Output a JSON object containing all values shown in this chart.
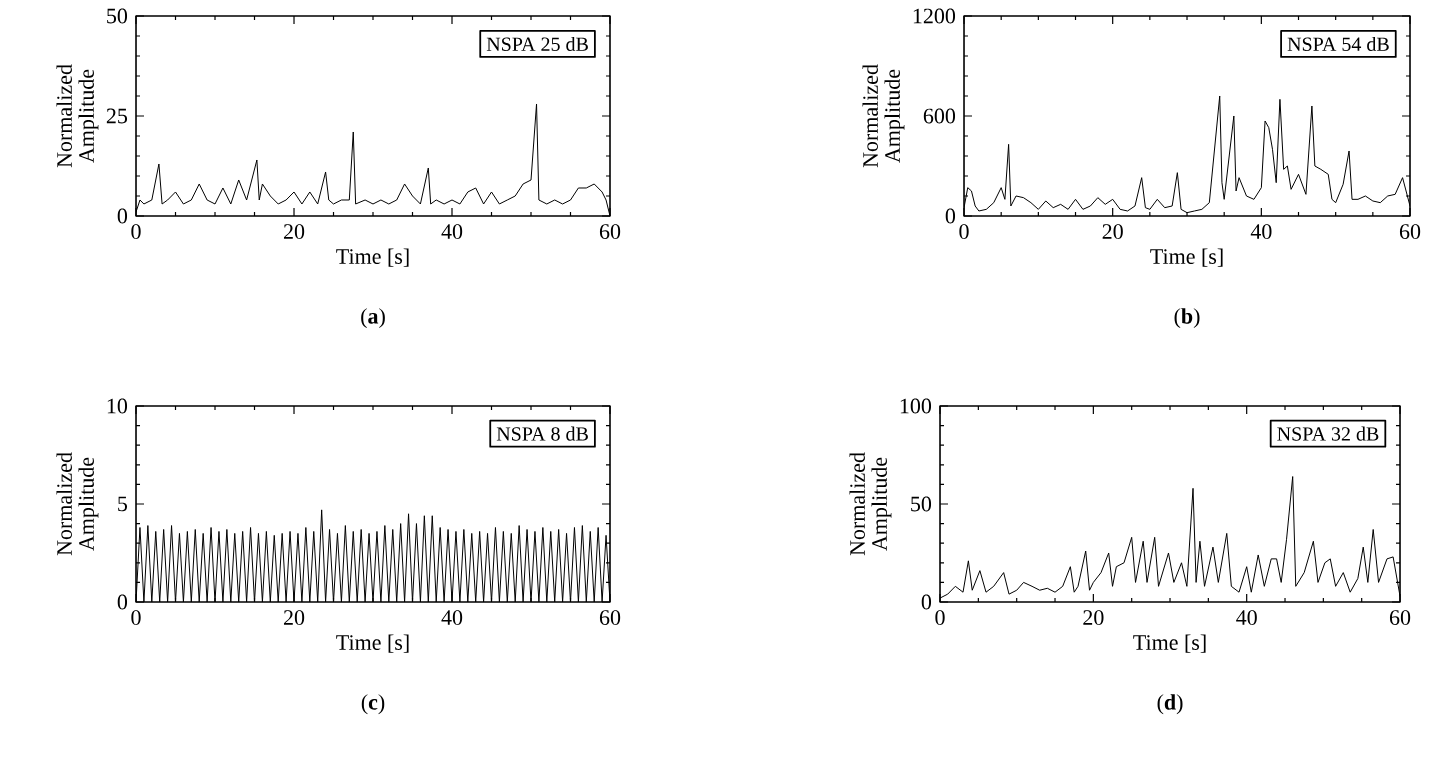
{
  "chart_data": [
    {
      "type": "line",
      "title": "(**a**)",
      "xlabel": "Time [s]",
      "ylabel": "Normalized Amplitude",
      "annotations": [
        "NSPA 25 dB"
      ],
      "xlim": [
        0,
        60
      ],
      "ylim": [
        0,
        50
      ],
      "xticks": [
        0,
        20,
        40,
        60
      ],
      "yticks": [
        0,
        25,
        50
      ],
      "x": [
        0,
        0.5,
        1,
        2,
        2.9,
        3.3,
        4,
        5,
        6,
        7,
        8,
        9,
        10,
        11,
        12,
        13,
        14,
        15.3,
        15.6,
        16,
        17,
        18,
        19,
        20,
        21,
        22,
        23,
        24,
        24.4,
        25,
        26,
        27,
        27.5,
        27.8,
        29,
        30,
        31,
        32,
        33,
        34,
        35,
        36,
        37,
        37.3,
        38,
        39,
        40,
        41,
        42,
        43,
        44,
        45,
        46,
        47,
        48,
        49,
        50,
        50.7,
        51,
        52,
        53,
        54,
        55,
        56,
        57,
        58,
        59,
        59.5,
        60
      ],
      "series": [
        {
          "color": "#000000",
          "values": [
            1,
            4,
            3,
            4,
            13,
            3,
            4,
            6,
            3,
            4,
            8,
            4,
            3,
            7,
            3,
            9,
            4,
            14,
            4,
            8,
            5,
            3,
            4,
            6,
            3,
            6,
            3,
            11,
            4,
            3,
            4,
            4,
            21,
            3,
            4,
            3,
            4,
            3,
            4,
            8,
            5,
            3,
            12,
            3,
            4,
            3,
            4,
            3,
            6,
            7,
            3,
            6,
            3,
            4,
            5,
            8,
            9,
            28,
            4,
            3,
            4,
            3,
            4,
            7,
            7,
            8,
            6,
            4,
            0
          ]
        }
      ]
    },
    {
      "type": "line",
      "title": "(**b**)",
      "xlabel": "Time [s]",
      "ylabel": "Normalized Amplitude",
      "annotations": [
        "NSPA 54 dB"
      ],
      "xlim": [
        0,
        60
      ],
      "ylim": [
        0,
        1200
      ],
      "xticks": [
        0,
        20,
        40,
        60
      ],
      "yticks": [
        0,
        600,
        1200
      ],
      "x": [
        0,
        0.5,
        1,
        1.5,
        2,
        3,
        4,
        5,
        5.5,
        6,
        6.3,
        7,
        8,
        9,
        10,
        11,
        12,
        13,
        14,
        15,
        16,
        17,
        18,
        19,
        20,
        21,
        22,
        23,
        23.9,
        24.4,
        25,
        26,
        27,
        28,
        28.7,
        29.2,
        30,
        31,
        32,
        33,
        34.4,
        34.7,
        35,
        36.3,
        36.6,
        37,
        38,
        39,
        40,
        40.5,
        41,
        41.5,
        42,
        42.5,
        43,
        43.5,
        44,
        45,
        46,
        46.8,
        47.2,
        48,
        49,
        49.5,
        50,
        51,
        51.8,
        52.2,
        53,
        54,
        55,
        56,
        57,
        58,
        59,
        60
      ],
      "series": [
        {
          "color": "#000000",
          "values": [
            50,
            170,
            150,
            60,
            30,
            40,
            80,
            170,
            100,
            430,
            60,
            120,
            110,
            80,
            40,
            90,
            50,
            70,
            40,
            100,
            40,
            60,
            110,
            70,
            100,
            40,
            30,
            60,
            230,
            50,
            40,
            100,
            50,
            60,
            260,
            40,
            20,
            30,
            40,
            80,
            720,
            200,
            100,
            600,
            150,
            230,
            120,
            100,
            170,
            570,
            530,
            400,
            200,
            700,
            280,
            300,
            160,
            250,
            130,
            660,
            300,
            280,
            250,
            100,
            80,
            190,
            390,
            100,
            100,
            120,
            90,
            80,
            120,
            130,
            230,
            60
          ]
        }
      ]
    },
    {
      "type": "line",
      "title": "(**c**)",
      "xlabel": "Time [s]",
      "ylabel": "Normalized Amplitude",
      "annotations": [
        "NSPA 8 dB"
      ],
      "xlim": [
        0,
        60
      ],
      "ylim": [
        0,
        10
      ],
      "xticks": [
        0,
        20,
        40,
        60
      ],
      "yticks": [
        0,
        5,
        10
      ],
      "x": [
        0,
        0.5,
        1,
        1.5,
        2,
        2.5,
        3,
        3.5,
        4,
        4.5,
        5,
        5.5,
        6,
        6.5,
        7,
        7.5,
        8,
        8.5,
        9,
        9.5,
        10,
        10.5,
        11,
        11.5,
        12,
        12.5,
        13,
        13.5,
        14,
        14.5,
        15,
        15.5,
        16,
        16.5,
        17,
        17.5,
        18,
        18.5,
        19,
        19.5,
        20,
        20.5,
        21,
        21.5,
        22,
        22.5,
        23,
        23.5,
        24,
        24.5,
        25,
        25.5,
        26,
        26.5,
        27,
        27.5,
        28,
        28.5,
        29,
        29.5,
        30,
        30.5,
        31,
        31.5,
        32,
        32.5,
        33,
        33.5,
        34,
        34.5,
        35,
        35.5,
        36,
        36.5,
        37,
        37.5,
        38,
        38.5,
        39,
        39.5,
        40,
        40.5,
        41,
        41.5,
        42,
        42.5,
        43,
        43.5,
        44,
        44.5,
        45,
        45.5,
        46,
        46.5,
        47,
        47.5,
        48,
        48.5,
        49,
        49.5,
        50,
        50.5,
        51,
        51.5,
        52,
        52.5,
        53,
        53.5,
        54,
        54.5,
        55,
        55.5,
        56,
        56.5,
        57,
        57.5,
        58,
        58.5,
        59,
        59.5,
        60
      ],
      "series": [
        {
          "color": "#000000",
          "values": [
            0,
            3.8,
            0,
            3.9,
            0,
            3.6,
            0,
            3.7,
            0,
            3.9,
            0,
            3.5,
            0,
            3.6,
            0,
            3.7,
            0,
            3.5,
            0,
            3.8,
            0,
            3.6,
            0,
            3.7,
            0,
            3.5,
            0,
            3.6,
            0,
            3.8,
            0,
            3.5,
            0,
            3.6,
            0,
            3.4,
            0,
            3.5,
            0,
            3.6,
            0,
            3.5,
            0,
            3.8,
            0,
            3.6,
            0,
            4.7,
            0,
            3.7,
            0,
            3.5,
            0,
            3.9,
            0,
            3.6,
            0,
            3.7,
            0,
            3.5,
            0,
            3.6,
            0,
            3.9,
            0,
            3.7,
            0,
            4.0,
            0,
            4.5,
            0,
            4.0,
            0,
            4.4,
            0,
            4.4,
            0,
            3.8,
            0,
            3.7,
            0,
            3.6,
            0,
            3.7,
            0,
            3.5,
            0,
            3.6,
            0,
            3.5,
            0,
            3.8,
            0,
            3.6,
            0,
            3.5,
            0,
            3.9,
            0,
            3.7,
            0,
            3.6,
            0,
            3.8,
            0,
            3.6,
            0,
            3.7,
            0,
            3.5,
            0,
            3.8,
            0,
            3.9,
            0,
            3.6,
            0,
            3.8,
            0,
            3.4,
            0
          ]
        }
      ]
    },
    {
      "type": "line",
      "title": "(**d**)",
      "xlabel": "Time [s]",
      "ylabel": "Normalized Amplitude",
      "annotations": [
        "NSPA 32 dB"
      ],
      "xlim": [
        0,
        60
      ],
      "ylim": [
        0,
        100
      ],
      "xticks": [
        0,
        20,
        40,
        60
      ],
      "yticks": [
        0,
        50,
        100
      ],
      "x": [
        0,
        1,
        2,
        3,
        3.7,
        4.2,
        5.2,
        6,
        7,
        8.3,
        9,
        10,
        10.9,
        12,
        13,
        14,
        15,
        16,
        17,
        17.5,
        18,
        19,
        19.5,
        20,
        21,
        22,
        22.5,
        23,
        24,
        25,
        25.5,
        26.5,
        27,
        28,
        28.5,
        29.8,
        30.5,
        31.5,
        32.2,
        33,
        33.4,
        33.9,
        34.5,
        35.6,
        36.3,
        37.4,
        38,
        39,
        40,
        40.6,
        41.5,
        42.3,
        43.2,
        43.9,
        44.5,
        45.2,
        46,
        46.4,
        47.5,
        48.7,
        49.3,
        50.2,
        50.9,
        51.6,
        52.6,
        53.5,
        54.5,
        55.2,
        55.8,
        56.5,
        57.2,
        58.3,
        59.1,
        60
      ],
      "series": [
        {
          "color": "#000000",
          "values": [
            2,
            4,
            8,
            5,
            21,
            6,
            16,
            5,
            8,
            15,
            4,
            6,
            10,
            8,
            6,
            7,
            5,
            8,
            18,
            5,
            8,
            26,
            6,
            10,
            15,
            25,
            8,
            18,
            20,
            33,
            10,
            31,
            10,
            33,
            8,
            25,
            10,
            20,
            8,
            58,
            10,
            31,
            8,
            28,
            10,
            35,
            8,
            5,
            18,
            5,
            24,
            8,
            22,
            22,
            10,
            32,
            64,
            8,
            15,
            31,
            10,
            20,
            22,
            8,
            15,
            5,
            12,
            28,
            10,
            37,
            10,
            22,
            23,
            3
          ]
        }
      ]
    }
  ]
}
